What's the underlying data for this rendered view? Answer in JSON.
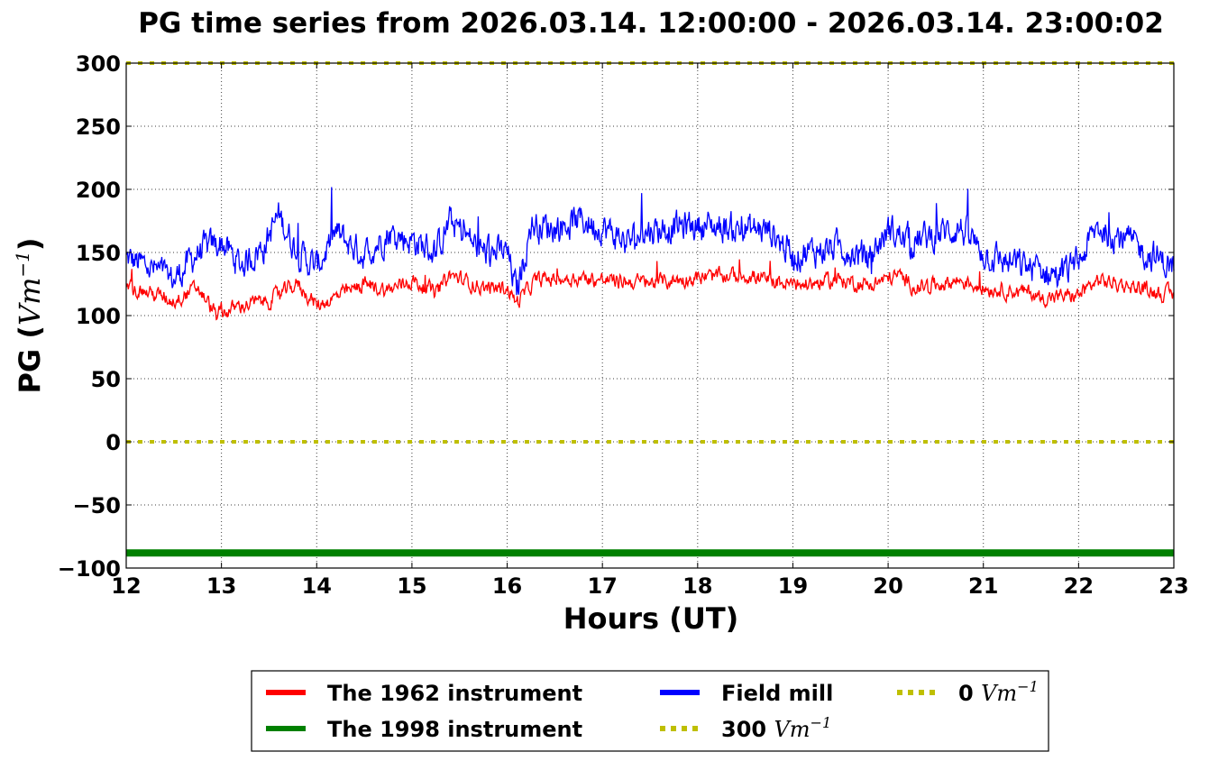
{
  "chart_data": {
    "type": "line",
    "title": "PG time series from 2026.03.14. 12:00:00 - 2026.03.14. 23:00:02",
    "xlabel": "Hours (UT)",
    "ylabel_text": "PG (",
    "ylabel_math": "Vm",
    "ylabel_sup": "−1",
    "ylabel_close": ")",
    "xlim": [
      12,
      23
    ],
    "ylim": [
      -100,
      300
    ],
    "x_ticks": [
      12,
      13,
      14,
      15,
      16,
      17,
      18,
      19,
      20,
      21,
      22,
      23
    ],
    "y_ticks": [
      -100,
      -50,
      0,
      50,
      100,
      150,
      200,
      250,
      300
    ],
    "x_tick_labels": [
      "12",
      "13",
      "14",
      "15",
      "16",
      "17",
      "18",
      "19",
      "20",
      "21",
      "22",
      "23"
    ],
    "y_tick_labels": [
      "−100",
      "−50",
      "0",
      "50",
      "100",
      "150",
      "200",
      "250",
      "300"
    ],
    "grid": true,
    "legend_placement": "below",
    "series": [
      {
        "name": "The 1962 instrument",
        "color": "#ff0000",
        "style": "solid",
        "noise": 7,
        "x": [
          12.0,
          12.25,
          12.5,
          12.75,
          12.95,
          13.2,
          13.5,
          13.8,
          14.0,
          14.3,
          14.5,
          14.75,
          15.0,
          15.25,
          15.4,
          15.75,
          16.0,
          16.1,
          16.3,
          16.75,
          17.0,
          17.5,
          18.0,
          18.5,
          19.0,
          19.5,
          19.8,
          20.1,
          20.3,
          20.75,
          21.0,
          21.5,
          21.6,
          22.0,
          22.2,
          22.5,
          23.0
        ],
        "y": [
          122,
          118,
          112,
          122,
          100,
          108,
          112,
          125,
          108,
          118,
          125,
          120,
          128,
          118,
          132,
          122,
          122,
          110,
          128,
          130,
          128,
          126,
          130,
          132,
          124,
          128,
          124,
          132,
          122,
          128,
          122,
          118,
          114,
          116,
          128,
          124,
          116
        ]
      },
      {
        "name": "The 1998 instrument",
        "color": "#008000",
        "style": "solid",
        "noise": 0,
        "x": [
          12,
          23
        ],
        "y": [
          -88,
          -88
        ]
      },
      {
        "name": "Field mill",
        "color": "#0000ff",
        "style": "solid",
        "noise": 14,
        "x": [
          12.0,
          12.25,
          12.5,
          12.75,
          13.0,
          13.2,
          13.45,
          13.6,
          13.8,
          14.0,
          14.2,
          14.5,
          14.75,
          15.0,
          15.25,
          15.4,
          15.75,
          16.0,
          16.1,
          16.25,
          16.5,
          16.75,
          17.0,
          17.25,
          17.5,
          18.0,
          18.5,
          18.75,
          19.0,
          19.5,
          19.8,
          20.0,
          20.25,
          20.75,
          21.0,
          21.25,
          21.5,
          21.8,
          22.0,
          22.2,
          22.5,
          22.7,
          23.0
        ],
        "y": [
          145,
          138,
          128,
          150,
          158,
          140,
          155,
          180,
          150,
          138,
          165,
          148,
          165,
          160,
          150,
          175,
          150,
          150,
          118,
          172,
          170,
          176,
          170,
          158,
          168,
          172,
          168,
          168,
          148,
          155,
          145,
          168,
          158,
          170,
          150,
          142,
          138,
          132,
          142,
          170,
          160,
          150,
          138
        ]
      },
      {
        "name": "300 Vm−1",
        "label_value": "300",
        "label_math": "Vm",
        "label_sup": "−1",
        "color": "#bfbf00",
        "style": "dotted",
        "noise": 0,
        "x": [
          12,
          23
        ],
        "y": [
          300,
          300
        ]
      },
      {
        "name": "0 Vm−1",
        "label_value": "0",
        "label_math": "Vm",
        "label_sup": "−1",
        "color": "#bfbf00",
        "style": "dotted",
        "noise": 0,
        "x": [
          12,
          23
        ],
        "y": [
          0,
          0
        ]
      }
    ]
  }
}
